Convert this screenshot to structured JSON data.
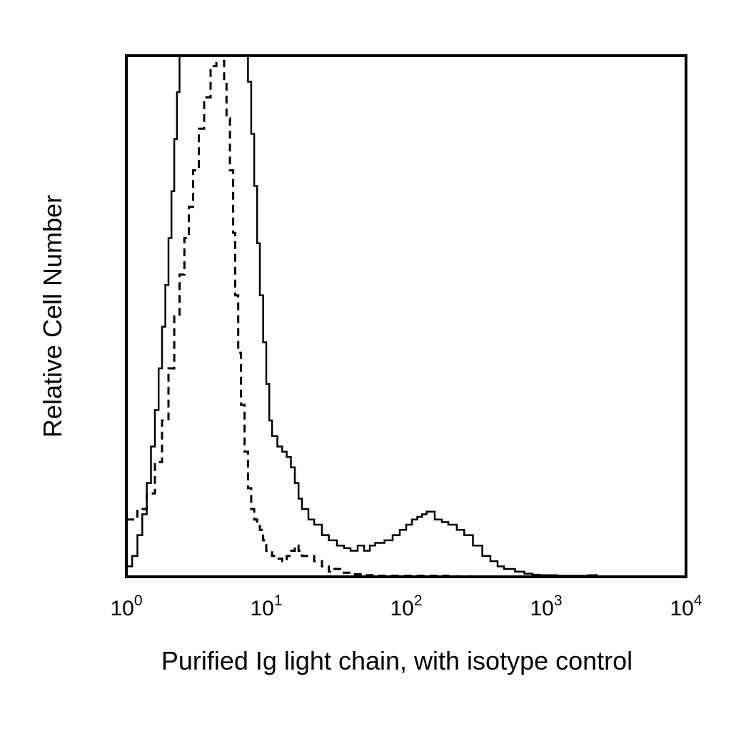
{
  "chart_data": {
    "type": "line",
    "title": "",
    "xlabel": "Purified Ig light chain, with isotype control",
    "ylabel": "Relative Cell Number",
    "x_scale": "log",
    "xlim": [
      1,
      10000
    ],
    "ylim": [
      0,
      100
    ],
    "x_ticks": [
      {
        "value": 1,
        "base": "10",
        "exp": "0"
      },
      {
        "value": 10,
        "base": "10",
        "exp": "1"
      },
      {
        "value": 100,
        "base": "10",
        "exp": "2"
      },
      {
        "value": 1000,
        "base": "10",
        "exp": "3"
      },
      {
        "value": 10000,
        "base": "10",
        "exp": "4"
      }
    ],
    "grid": false,
    "legend": "none",
    "series": [
      {
        "style": "solid",
        "color": "#000000",
        "x": [
          1.0,
          1.1,
          1.2,
          1.3,
          1.4,
          1.5,
          1.6,
          1.7,
          1.8,
          1.9,
          2.0,
          2.1,
          2.2,
          2.3,
          2.4,
          2.7,
          3.0,
          3.5,
          4.0,
          4.5,
          5.0,
          5.5,
          6.0,
          6.5,
          7.0,
          7.4,
          7.8,
          8.2,
          8.6,
          9.0,
          9.5,
          10.0,
          10.5,
          11.0,
          12.0,
          13.0,
          14.0,
          15.0,
          16.0,
          17.0,
          18.0,
          20.0,
          22.0,
          25.0,
          28.0,
          32.0,
          36.0,
          40.0,
          45.0,
          50.0,
          55.0,
          60.0,
          70.0,
          80.0,
          90.0,
          100.0,
          110.0,
          120.0,
          130.0,
          140.0,
          160.0,
          180.0,
          200.0,
          230.0,
          260.0,
          300.0,
          350.0,
          400.0,
          450.0,
          500.0,
          600.0,
          700.0,
          800.0,
          900.0,
          1000.0,
          1200.0,
          1500.0,
          2000.0,
          2300.0
        ],
        "y": [
          2.0,
          4.0,
          8.0,
          12.0,
          18.0,
          25.0,
          32.0,
          40.0,
          48.0,
          56.0,
          65.0,
          74.0,
          84.0,
          93.0,
          100.0,
          100.0,
          100.0,
          100.0,
          100.0,
          100.0,
          100.0,
          100.0,
          100.0,
          100.0,
          100.0,
          95.0,
          85.0,
          75.0,
          64.0,
          54.0,
          45.0,
          37.0,
          30.0,
          27.0,
          25.0,
          24.0,
          23.0,
          21.0,
          18.0,
          15.0,
          13.0,
          11.0,
          10.0,
          8.0,
          7.0,
          6.0,
          5.5,
          5.0,
          6.0,
          5.0,
          6.0,
          6.5,
          7.0,
          8.0,
          9.0,
          10.0,
          11.0,
          11.5,
          12.0,
          12.5,
          11.0,
          10.5,
          10.0,
          9.0,
          8.0,
          6.0,
          4.0,
          3.0,
          2.0,
          1.5,
          1.0,
          0.6,
          0.4,
          0.3,
          0.3,
          0.2,
          0.2,
          0.3,
          0.5
        ]
      },
      {
        "style": "dashed",
        "color": "#000000",
        "x": [
          1.0,
          1.2,
          1.4,
          1.6,
          1.8,
          2.0,
          2.2,
          2.4,
          2.6,
          2.8,
          3.0,
          3.3,
          3.6,
          4.0,
          4.4,
          4.8,
          5.0,
          5.2,
          5.5,
          5.8,
          6.0,
          6.3,
          6.6,
          7.0,
          7.4,
          7.8,
          8.2,
          8.6,
          9.0,
          9.5,
          10.0,
          11.0,
          12.0,
          13.0,
          14.0,
          15.0,
          16.0,
          17.0,
          18.0,
          20.0,
          22.0,
          25.0,
          28.0,
          30.0,
          35.0,
          40.0,
          50.0,
          60.0,
          80.0,
          100.0,
          150.0,
          200.0,
          300.0
        ],
        "y": [
          11.0,
          13.0,
          16.0,
          22.0,
          30.0,
          40.0,
          50.0,
          58.0,
          65.0,
          71.0,
          78.0,
          86.0,
          92.0,
          98.0,
          100.0,
          99.0,
          95.0,
          88.0,
          78.0,
          66.0,
          54.0,
          43.0,
          33.0,
          24.0,
          17.0,
          13.0,
          11.0,
          10.0,
          9.0,
          7.0,
          5.0,
          4.0,
          3.5,
          3.0,
          4.0,
          5.0,
          6.0,
          5.0,
          4.0,
          4.0,
          3.0,
          2.0,
          1.0,
          1.5,
          0.8,
          0.5,
          0.3,
          0.2,
          0.2,
          0.2,
          0.2,
          0.1,
          0.1
        ]
      }
    ]
  }
}
